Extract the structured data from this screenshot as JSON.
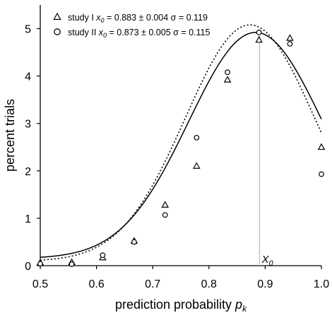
{
  "chart_data": {
    "type": "scatter",
    "xlabel": "prediction probability",
    "xlabel_var": "p",
    "xlabel_sub": "k",
    "ylabel": "percent trials",
    "xlim": [
      0.5,
      1.0
    ],
    "ylim": [
      0,
      5.5
    ],
    "xticks": [
      "0.5",
      "0.6",
      "0.7",
      "0.8",
      "0.9",
      "1.0"
    ],
    "yticks": [
      "0",
      "1",
      "2",
      "3",
      "4",
      "5"
    ],
    "grid": false,
    "legend_position": "top-left",
    "series": [
      {
        "name": "study I",
        "marker": "triangle",
        "legend_x0_label": "x",
        "legend_x0_sub": "0",
        "legend_stats": "= 0.883 ± 0.004 σ = 0.119",
        "x": [
          0.5,
          0.556,
          0.611,
          0.667,
          0.722,
          0.778,
          0.833,
          0.889,
          0.944,
          1.0
        ],
        "y": [
          0.06,
          0.07,
          0.17,
          0.52,
          1.28,
          2.1,
          3.92,
          4.76,
          4.8,
          2.5
        ],
        "fit": {
          "type": "gaussian",
          "x0": 0.883,
          "sigma": 0.119,
          "peak": 4.92,
          "baseline": 0.15,
          "line": "solid"
        }
      },
      {
        "name": "study II",
        "marker": "circle",
        "legend_x0_label": "x",
        "legend_x0_sub": "0",
        "legend_stats": "= 0.873 ± 0.005 σ = 0.115",
        "x": [
          0.5,
          0.556,
          0.611,
          0.667,
          0.722,
          0.778,
          0.833,
          0.889,
          0.944,
          1.0
        ],
        "y": [
          0.04,
          0.03,
          0.22,
          0.5,
          1.07,
          2.7,
          4.08,
          4.92,
          4.68,
          1.93
        ],
        "fit": {
          "type": "gaussian",
          "x0": 0.873,
          "sigma": 0.115,
          "peak": 5.08,
          "baseline": 0.09,
          "line": "dotted"
        }
      }
    ],
    "annotations": [
      {
        "text": "X",
        "sub": "0",
        "x": 0.89
      }
    ]
  }
}
